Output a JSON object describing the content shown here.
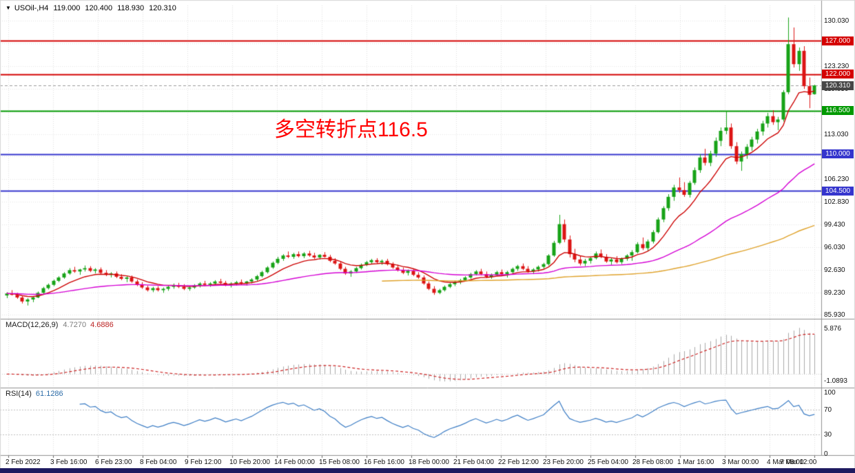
{
  "header": {
    "symbol": "USOil-,H4",
    "open": "119.000",
    "high": "120.400",
    "low": "118.930",
    "close": "120.310"
  },
  "annotation": {
    "text": "多空转折点116.5",
    "color": "#ff0000"
  },
  "indicators": {
    "macd": {
      "label": "MACD(12,26,9)",
      "value1": "4.7270",
      "value2": "4.6886",
      "axis_max": "5.876",
      "axis_min": "-1.0893"
    },
    "rsi": {
      "label": "RSI(14)",
      "value": "61.1286",
      "axis_labels": [
        "100",
        "70",
        "30",
        "0"
      ]
    }
  },
  "footer_bar_color": "#1e1a60",
  "chart_data": {
    "type": "candlestick",
    "symbol": "USOil-",
    "timeframe": "H4",
    "title": "USOil-,H4 119.000 120.400 118.930 120.310",
    "price_axis": {
      "min": 85.41,
      "max": 132.3,
      "ticks": [
        "130.030",
        "126.630",
        "123.230",
        "119.830",
        "116.430",
        "113.030",
        "109.630",
        "106.230",
        "102.830",
        "99.430",
        "96.030",
        "92.630",
        "89.230",
        "85.930"
      ]
    },
    "time_labels": [
      "2 Feb 2022",
      "3 Feb 16:00",
      "6 Feb 23:00",
      "8 Feb 04:00",
      "9 Feb 12:00",
      "10 Feb 20:00",
      "14 Feb 00:00",
      "15 Feb 08:00",
      "16 Feb 16:00",
      "18 Feb 00:00",
      "21 Feb 04:00",
      "22 Feb 12:00",
      "23 Feb 20:00",
      "25 Feb 04:00",
      "28 Feb 08:00",
      "1 Mar 16:00",
      "3 Mar 00:00",
      "4 Mar 08:00",
      "7 Mar 12:00"
    ],
    "hlines": [
      {
        "value": 127.0,
        "label": "127.000",
        "color": "#d40000"
      },
      {
        "value": 122.0,
        "label": "122.000",
        "color": "#d40000"
      },
      {
        "value": 116.5,
        "label": "116.500",
        "color": "#009900"
      },
      {
        "value": 110.0,
        "label": "110.000",
        "color": "#3535cd"
      },
      {
        "value": 104.5,
        "label": "104.500",
        "color": "#3535cd"
      }
    ],
    "current_price": {
      "value": 120.31,
      "label": "120.310",
      "color": "#474747"
    },
    "colors": {
      "up": "#17a317",
      "down": "#dc1414",
      "macd_hist": "#a8a8a8",
      "macd_signal": "#cc2222",
      "rsi_line": "#3b7cc4"
    },
    "ma_lines": [
      {
        "period": 10,
        "color": "#cc0000",
        "start_index": 0
      },
      {
        "period": 50,
        "color": "#d400d4",
        "start_index": 0
      },
      {
        "period": 150,
        "color": "#dfa22b",
        "start_index": 72
      }
    ],
    "macd_range": {
      "min": -1.0893,
      "max": 5.876
    },
    "rsi_levels": [
      70,
      30
    ],
    "candles": [
      [
        88.8,
        89.3,
        88.4,
        89.1
      ],
      [
        89.1,
        89.6,
        88.8,
        88.9
      ],
      [
        88.9,
        89.2,
        88.3,
        88.5
      ],
      [
        88.5,
        88.7,
        87.6,
        87.9
      ],
      [
        87.9,
        88.4,
        87.3,
        88.2
      ],
      [
        88.2,
        88.6,
        87.8,
        88.5
      ],
      [
        88.5,
        89.4,
        88.4,
        89.2
      ],
      [
        89.2,
        90.1,
        89.0,
        89.9
      ],
      [
        89.9,
        90.6,
        89.7,
        90.4
      ],
      [
        90.4,
        91.2,
        90.2,
        91.0
      ],
      [
        91.0,
        91.7,
        90.8,
        91.5
      ],
      [
        91.5,
        92.3,
        91.3,
        92.1
      ],
      [
        92.1,
        92.9,
        91.9,
        92.6
      ],
      [
        92.6,
        93.1,
        92.2,
        92.4
      ],
      [
        92.4,
        92.8,
        91.9,
        92.7
      ],
      [
        92.7,
        93.3,
        92.4,
        92.9
      ],
      [
        92.9,
        93.2,
        92.3,
        92.5
      ],
      [
        92.5,
        92.9,
        92.1,
        92.7
      ],
      [
        92.7,
        93.0,
        92.0,
        92.2
      ],
      [
        92.2,
        92.6,
        91.7,
        91.9
      ],
      [
        91.9,
        92.3,
        91.5,
        92.1
      ],
      [
        92.1,
        92.4,
        91.4,
        91.6
      ],
      [
        91.6,
        92.0,
        91.1,
        91.3
      ],
      [
        91.3,
        91.7,
        90.8,
        91.5
      ],
      [
        91.5,
        91.8,
        90.7,
        90.9
      ],
      [
        90.9,
        91.2,
        90.2,
        90.4
      ],
      [
        90.4,
        90.8,
        89.8,
        90.0
      ],
      [
        90.0,
        90.3,
        89.4,
        89.6
      ],
      [
        89.6,
        90.1,
        89.3,
        89.9
      ],
      [
        89.9,
        90.2,
        89.4,
        89.6
      ],
      [
        89.6,
        90.0,
        89.2,
        89.8
      ],
      [
        89.8,
        90.3,
        89.5,
        90.1
      ],
      [
        90.1,
        90.6,
        89.8,
        90.3
      ],
      [
        90.3,
        90.7,
        89.9,
        90.1
      ],
      [
        90.1,
        90.5,
        89.6,
        89.8
      ],
      [
        89.8,
        90.2,
        89.5,
        90.0
      ],
      [
        90.0,
        90.5,
        89.8,
        90.3
      ],
      [
        90.3,
        90.8,
        90.0,
        90.6
      ],
      [
        90.6,
        91.0,
        90.2,
        90.4
      ],
      [
        90.4,
        90.8,
        90.1,
        90.6
      ],
      [
        90.6,
        91.1,
        90.3,
        90.9
      ],
      [
        90.9,
        91.3,
        90.5,
        90.7
      ],
      [
        90.7,
        91.0,
        90.2,
        90.4
      ],
      [
        90.4,
        90.8,
        90.0,
        90.6
      ],
      [
        90.6,
        91.0,
        90.3,
        90.8
      ],
      [
        90.8,
        91.2,
        90.4,
        90.6
      ],
      [
        90.6,
        91.0,
        90.3,
        90.9
      ],
      [
        90.9,
        91.4,
        90.6,
        91.2
      ],
      [
        91.2,
        91.9,
        91.0,
        91.7
      ],
      [
        91.7,
        92.5,
        91.5,
        92.3
      ],
      [
        92.3,
        93.2,
        92.1,
        93.0
      ],
      [
        93.0,
        93.9,
        92.8,
        93.7
      ],
      [
        93.7,
        94.6,
        93.5,
        94.3
      ],
      [
        94.3,
        95.0,
        94.0,
        94.8
      ],
      [
        94.8,
        95.4,
        94.4,
        94.6
      ],
      [
        94.6,
        95.2,
        94.3,
        95.0
      ],
      [
        95.0,
        95.4,
        94.5,
        94.7
      ],
      [
        94.7,
        95.3,
        94.4,
        95.1
      ],
      [
        95.1,
        95.5,
        94.6,
        94.8
      ],
      [
        94.8,
        95.2,
        94.3,
        94.5
      ],
      [
        94.5,
        95.0,
        94.2,
        94.9
      ],
      [
        94.9,
        95.3,
        94.5,
        94.6
      ],
      [
        94.6,
        94.9,
        93.8,
        94.0
      ],
      [
        94.0,
        94.4,
        93.4,
        93.6
      ],
      [
        93.6,
        93.9,
        92.6,
        92.8
      ],
      [
        92.8,
        93.1,
        91.9,
        92.1
      ],
      [
        92.1,
        92.6,
        91.6,
        92.4
      ],
      [
        92.4,
        93.1,
        92.2,
        92.9
      ],
      [
        92.9,
        93.6,
        92.7,
        93.4
      ],
      [
        93.4,
        94.0,
        93.2,
        93.8
      ],
      [
        93.8,
        94.3,
        93.5,
        94.1
      ],
      [
        94.1,
        94.4,
        93.6,
        93.8
      ],
      [
        93.8,
        94.2,
        93.4,
        94.0
      ],
      [
        94.0,
        94.3,
        93.3,
        93.5
      ],
      [
        93.5,
        93.8,
        92.8,
        93.0
      ],
      [
        93.0,
        93.4,
        92.4,
        92.6
      ],
      [
        92.6,
        93.0,
        92.0,
        92.2
      ],
      [
        92.2,
        92.7,
        91.8,
        92.5
      ],
      [
        92.5,
        92.8,
        91.7,
        91.9
      ],
      [
        91.9,
        92.3,
        91.3,
        91.5
      ],
      [
        91.5,
        91.8,
        90.4,
        90.6
      ],
      [
        90.6,
        90.9,
        89.6,
        89.8
      ],
      [
        89.8,
        90.2,
        88.9,
        89.2
      ],
      [
        89.2,
        89.8,
        89.0,
        89.6
      ],
      [
        89.6,
        90.3,
        89.4,
        90.1
      ],
      [
        90.1,
        90.7,
        89.9,
        90.5
      ],
      [
        90.5,
        91.0,
        90.2,
        90.8
      ],
      [
        90.8,
        91.3,
        90.5,
        91.1
      ],
      [
        91.1,
        91.7,
        90.9,
        91.5
      ],
      [
        91.5,
        92.2,
        91.3,
        92.0
      ],
      [
        92.0,
        92.6,
        91.8,
        92.4
      ],
      [
        92.4,
        92.8,
        91.8,
        92.0
      ],
      [
        92.0,
        92.4,
        91.4,
        91.6
      ],
      [
        91.6,
        92.1,
        91.3,
        91.9
      ],
      [
        91.9,
        92.5,
        91.7,
        92.3
      ],
      [
        92.3,
        92.7,
        91.8,
        92.0
      ],
      [
        92.0,
        92.5,
        91.5,
        92.3
      ],
      [
        92.3,
        93.0,
        92.1,
        92.8
      ],
      [
        92.8,
        93.4,
        92.5,
        93.2
      ],
      [
        93.2,
        93.6,
        92.6,
        92.8
      ],
      [
        92.8,
        93.2,
        92.2,
        92.4
      ],
      [
        92.4,
        92.9,
        92.0,
        92.7
      ],
      [
        92.7,
        93.3,
        92.4,
        93.1
      ],
      [
        93.1,
        93.7,
        92.8,
        93.5
      ],
      [
        93.5,
        95.0,
        93.3,
        94.8
      ],
      [
        94.8,
        97.0,
        94.6,
        96.7
      ],
      [
        96.7,
        100.9,
        96.5,
        99.5
      ],
      [
        99.5,
        100.2,
        96.8,
        97.2
      ],
      [
        97.2,
        97.8,
        94.5,
        95.0
      ],
      [
        95.0,
        95.8,
        93.8,
        94.2
      ],
      [
        94.2,
        94.8,
        93.3,
        93.6
      ],
      [
        93.6,
        94.3,
        93.2,
        94.0
      ],
      [
        94.0,
        94.6,
        93.6,
        94.4
      ],
      [
        94.4,
        95.4,
        94.2,
        95.1
      ],
      [
        95.1,
        95.7,
        94.4,
        94.6
      ],
      [
        94.6,
        95.0,
        93.7,
        93.9
      ],
      [
        93.9,
        94.4,
        93.4,
        94.2
      ],
      [
        94.2,
        94.7,
        93.6,
        93.8
      ],
      [
        93.8,
        94.5,
        93.5,
        94.3
      ],
      [
        94.3,
        95.0,
        94.0,
        94.8
      ],
      [
        94.8,
        95.6,
        94.0,
        95.3
      ],
      [
        95.3,
        96.8,
        95.1,
        96.5
      ],
      [
        96.5,
        97.5,
        95.6,
        95.9
      ],
      [
        95.9,
        97.2,
        95.5,
        96.9
      ],
      [
        96.9,
        98.6,
        96.6,
        98.3
      ],
      [
        98.3,
        100.5,
        98.1,
        100.2
      ],
      [
        100.2,
        102.2,
        99.8,
        101.9
      ],
      [
        101.9,
        104.0,
        101.5,
        103.6
      ],
      [
        103.6,
        105.4,
        103.0,
        105.0
      ],
      [
        105.0,
        106.5,
        104.2,
        104.6
      ],
      [
        104.6,
        105.8,
        103.6,
        103.9
      ],
      [
        103.9,
        106.0,
        103.5,
        105.7
      ],
      [
        105.7,
        108.0,
        105.4,
        107.6
      ],
      [
        107.6,
        110.0,
        107.2,
        109.5
      ],
      [
        109.5,
        110.8,
        108.3,
        108.7
      ],
      [
        108.7,
        110.5,
        108.2,
        110.1
      ],
      [
        110.1,
        112.5,
        109.6,
        112.0
      ],
      [
        112.0,
        114.0,
        111.2,
        113.5
      ],
      [
        113.5,
        116.5,
        113.0,
        114.0
      ],
      [
        114.0,
        114.6,
        110.8,
        111.2
      ],
      [
        111.2,
        111.8,
        108.5,
        108.9
      ],
      [
        108.9,
        110.4,
        107.5,
        110.0
      ],
      [
        110.0,
        111.5,
        109.3,
        111.1
      ],
      [
        111.1,
        112.6,
        110.5,
        112.2
      ],
      [
        112.2,
        113.8,
        111.6,
        113.4
      ],
      [
        113.4,
        115.0,
        112.8,
        114.6
      ],
      [
        114.6,
        116.2,
        114.0,
        115.7
      ],
      [
        115.7,
        116.6,
        114.4,
        114.8
      ],
      [
        114.8,
        115.6,
        113.6,
        115.2
      ],
      [
        115.2,
        119.6,
        114.9,
        119.3
      ],
      [
        119.3,
        130.5,
        119.0,
        126.5
      ],
      [
        126.5,
        129.0,
        123.0,
        123.5
      ],
      [
        123.5,
        126.0,
        122.5,
        125.5
      ],
      [
        125.5,
        126.2,
        119.8,
        120.2
      ],
      [
        120.2,
        121.5,
        116.9,
        118.9
      ],
      [
        119.0,
        120.4,
        118.93,
        120.31
      ]
    ]
  }
}
